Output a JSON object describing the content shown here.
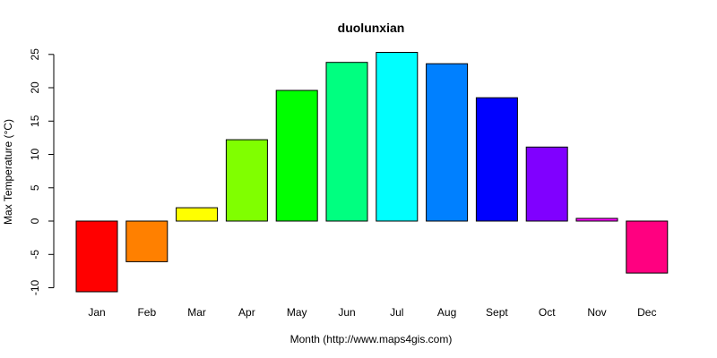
{
  "chart_data": {
    "type": "bar",
    "title": "duolunxian",
    "xlabel": "Month (http://www.maps4gis.com)",
    "ylabel": "Max Temperature (°C)",
    "categories": [
      "Jan",
      "Feb",
      "Mar",
      "Apr",
      "May",
      "Jun",
      "Jul",
      "Aug",
      "Sept",
      "Oct",
      "Nov",
      "Dec"
    ],
    "values": [
      -10.6,
      -6.1,
      2.0,
      12.2,
      19.6,
      23.8,
      25.3,
      23.6,
      18.5,
      11.1,
      0.4,
      -7.8
    ],
    "colors": [
      "#FF0000",
      "#FF8000",
      "#FFFF00",
      "#80FF00",
      "#00FF00",
      "#00FF80",
      "#00FFFF",
      "#0080FF",
      "#0000FF",
      "#8000FF",
      "#FF00FF",
      "#FF0080"
    ],
    "yticks": [
      -10,
      -5,
      0,
      5,
      10,
      15,
      20,
      25
    ],
    "ylim": [
      -10.6,
      25.3
    ],
    "grid": false,
    "legend": "none"
  }
}
